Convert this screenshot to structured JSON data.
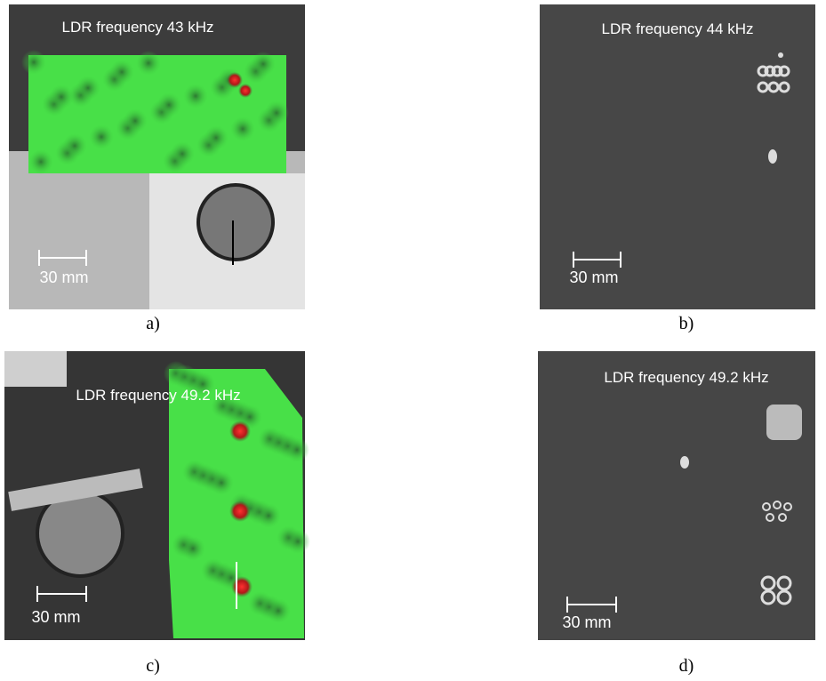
{
  "panels": [
    {
      "title": "LDR frequency 43 kHz",
      "scale": "30 mm",
      "label": "a)"
    },
    {
      "title": "LDR frequency 44 kHz",
      "scale": "30 mm",
      "label": "b)"
    },
    {
      "title": "LDR frequency 49.2 kHz",
      "scale": "30 mm",
      "label": "c)"
    },
    {
      "title": "LDR frequency 49.2 kHz",
      "scale": "30 mm",
      "label": "d)"
    }
  ]
}
